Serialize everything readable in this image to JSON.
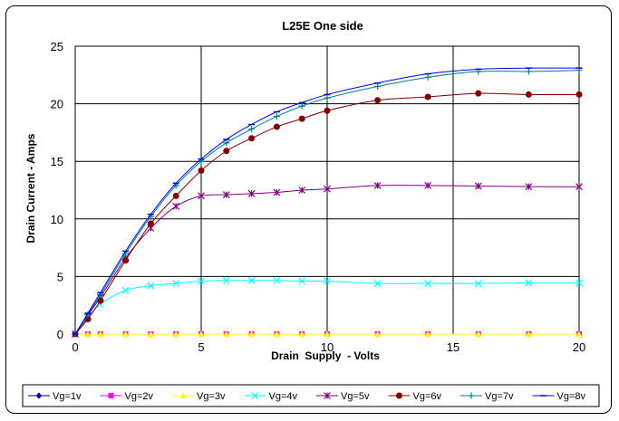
{
  "chart_data": {
    "type": "line",
    "title": "L25E One side",
    "xlabel": "Drain  Supply  - Volts",
    "ylabel": "Drain Current - Amps",
    "xlim": [
      0,
      20
    ],
    "ylim": [
      0,
      25
    ],
    "xticks": [
      0,
      5,
      10,
      15,
      20
    ],
    "yticks": [
      0,
      5,
      10,
      15,
      20,
      25
    ],
    "grid": true,
    "legend_position": "bottom",
    "series": [
      {
        "name": "Vg=1v",
        "color": "#000080",
        "marker": "diamond",
        "x": [
          0,
          0.5,
          1,
          2,
          3,
          4,
          5,
          6,
          7,
          8,
          9,
          10,
          12,
          14,
          16,
          18,
          20
        ],
        "y": [
          0,
          0,
          0,
          0,
          0,
          0,
          0,
          0,
          0,
          0,
          0,
          0,
          0,
          0,
          0,
          0,
          0
        ]
      },
      {
        "name": "Vg=2v",
        "color": "#ff00ff",
        "marker": "square",
        "x": [
          0,
          0.5,
          1,
          2,
          3,
          4,
          5,
          6,
          7,
          8,
          9,
          10,
          12,
          14,
          16,
          18,
          20
        ],
        "y": [
          0,
          0,
          0,
          0,
          0,
          0,
          0,
          0,
          0,
          0,
          0,
          0,
          0,
          0,
          0,
          0,
          0
        ]
      },
      {
        "name": "Vg=3v",
        "color": "#ffff00",
        "marker": "triangle",
        "x": [
          0,
          0.5,
          1,
          2,
          3,
          4,
          5,
          6,
          7,
          8,
          9,
          10,
          12,
          14,
          16,
          18,
          20
        ],
        "y": [
          0,
          0,
          0,
          0,
          0,
          0,
          0,
          0,
          0,
          0,
          0,
          0,
          0,
          0,
          0,
          0,
          0
        ]
      },
      {
        "name": "Vg=4v",
        "color": "#00ffff",
        "marker": "x",
        "x": [
          0,
          0.5,
          1,
          2,
          3,
          4,
          5,
          6,
          7,
          8,
          9,
          10,
          12,
          14,
          16,
          18,
          20
        ],
        "y": [
          0,
          1.4,
          2.6,
          3.8,
          4.2,
          4.4,
          4.6,
          4.65,
          4.65,
          4.65,
          4.6,
          4.6,
          4.4,
          4.4,
          4.4,
          4.45,
          4.45
        ]
      },
      {
        "name": "Vg=5v",
        "color": "#800080",
        "marker": "star",
        "x": [
          0,
          0.5,
          1,
          2,
          3,
          4,
          5,
          6,
          7,
          8,
          9,
          10,
          12,
          14,
          16,
          18,
          20
        ],
        "y": [
          0,
          1.6,
          3.2,
          6.6,
          9.2,
          11.1,
          12.0,
          12.1,
          12.2,
          12.3,
          12.5,
          12.6,
          12.9,
          12.9,
          12.85,
          12.8,
          12.8
        ]
      },
      {
        "name": "Vg=6v",
        "color": "#800000",
        "marker": "circle",
        "x": [
          0,
          0.5,
          1,
          2,
          3,
          4,
          5,
          6,
          7,
          8,
          9,
          10,
          12,
          14,
          16,
          18,
          20
        ],
        "y": [
          0,
          1.3,
          2.9,
          6.4,
          9.6,
          12.0,
          14.2,
          15.9,
          17.0,
          18.0,
          18.7,
          19.4,
          20.3,
          20.6,
          20.9,
          20.8,
          20.8
        ]
      },
      {
        "name": "Vg=7v",
        "color": "#008080",
        "marker": "plus",
        "x": [
          0,
          0.5,
          1,
          2,
          3,
          4,
          5,
          6,
          7,
          8,
          9,
          10,
          12,
          14,
          16,
          18,
          20
        ],
        "y": [
          0,
          1.7,
          3.4,
          7.0,
          10.2,
          12.9,
          15.0,
          16.6,
          17.8,
          18.9,
          19.8,
          20.5,
          21.5,
          22.3,
          22.8,
          22.8,
          22.9
        ]
      },
      {
        "name": "Vg=8v",
        "color": "#0000ff",
        "marker": "dash",
        "x": [
          0,
          0.5,
          1,
          2,
          3,
          4,
          5,
          6,
          7,
          8,
          9,
          10,
          12,
          14,
          16,
          18,
          20
        ],
        "y": [
          0,
          1.8,
          3.6,
          7.2,
          10.4,
          13.1,
          15.2,
          16.9,
          18.2,
          19.3,
          20.1,
          20.8,
          21.8,
          22.6,
          23.0,
          23.1,
          23.1
        ]
      }
    ]
  }
}
